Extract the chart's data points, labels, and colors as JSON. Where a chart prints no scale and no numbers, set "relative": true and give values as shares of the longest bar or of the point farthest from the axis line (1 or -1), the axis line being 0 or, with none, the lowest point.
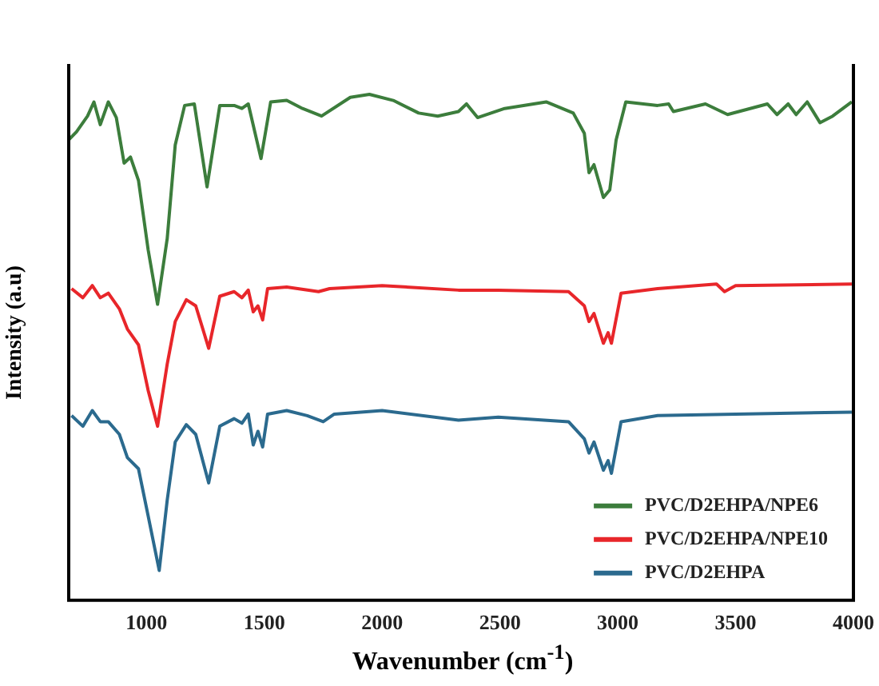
{
  "chart_data": {
    "type": "line",
    "xlabel": "Wavenumber (cm$^{-1}$)",
    "ylabel": "Intensity (a.u)",
    "relative": true,
    "xlim": [
      670,
      4000
    ],
    "xticks": [
      1000,
      1500,
      2000,
      2500,
      3000,
      3500,
      4000
    ],
    "grid": false,
    "legend": "bottom right",
    "marker": "none",
    "line_style": "solid",
    "series": [
      {
        "name": "PVC/D2EHPA/NPE6",
        "color": "#3c7d3c",
        "x": [
          670,
          703,
          750,
          777,
          804,
          838,
          872,
          905,
          932,
          966,
          1007,
          1047,
          1088,
          1122,
          1162,
          1203,
          1257,
          1311,
          1372,
          1405,
          1432,
          1486,
          1527,
          1595,
          1662,
          1743,
          1865,
          1946,
          2047,
          2155,
          2236,
          2324,
          2358,
          2405,
          2520,
          2696,
          2811,
          2858,
          2878,
          2899,
          2939,
          2966,
          2993,
          3034,
          3169,
          3216,
          3236,
          3372,
          3466,
          3635,
          3676,
          3723,
          3757,
          3804,
          3858,
          3912,
          3993
        ],
        "values": [
          0.91,
          0.926,
          0.957,
          0.985,
          0.94,
          0.985,
          0.954,
          0.864,
          0.876,
          0.83,
          0.693,
          0.585,
          0.715,
          0.9,
          0.978,
          0.981,
          0.817,
          0.978,
          0.978,
          0.972,
          0.981,
          0.873,
          0.985,
          0.988,
          0.972,
          0.957,
          0.994,
          1,
          0.988,
          0.963,
          0.957,
          0.966,
          0.981,
          0.954,
          0.972,
          0.985,
          0.963,
          0.923,
          0.845,
          0.861,
          0.796,
          0.811,
          0.91,
          0.985,
          0.978,
          0.981,
          0.966,
          0.981,
          0.96,
          0.981,
          0.96,
          0.981,
          0.96,
          0.985,
          0.944,
          0.957,
          0.985
        ]
      },
      {
        "name": "PVC/D2EHPA/NPE10",
        "color": "#e8262a",
        "x": [
          682,
          730,
          770,
          804,
          838,
          885,
          919,
          966,
          1007,
          1047,
          1088,
          1122,
          1169,
          1209,
          1264,
          1311,
          1372,
          1405,
          1432,
          1453,
          1473,
          1493,
          1514,
          1595,
          1730,
          1777,
          2000,
          2324,
          2493,
          2791,
          2858,
          2878,
          2899,
          2939,
          2959,
          2973,
          3014,
          3169,
          3419,
          3453,
          3500,
          3993
        ],
        "values": [
          0.616,
          0.598,
          0.622,
          0.598,
          0.607,
          0.576,
          0.536,
          0.505,
          0.415,
          0.344,
          0.467,
          0.551,
          0.594,
          0.582,
          0.498,
          0.601,
          0.61,
          0.598,
          0.613,
          0.57,
          0.582,
          0.554,
          0.616,
          0.619,
          0.61,
          0.616,
          0.622,
          0.613,
          0.613,
          0.61,
          0.582,
          0.551,
          0.567,
          0.508,
          0.529,
          0.508,
          0.607,
          0.616,
          0.625,
          0.61,
          0.622,
          0.625
        ]
      },
      {
        "name": "PVC/D2EHPA",
        "color": "#2b6a8e",
        "x": [
          682,
          730,
          770,
          804,
          838,
          885,
          919,
          966,
          1007,
          1054,
          1088,
          1122,
          1169,
          1209,
          1264,
          1311,
          1372,
          1405,
          1432,
          1453,
          1473,
          1493,
          1514,
          1595,
          1682,
          1750,
          1797,
          2000,
          2324,
          2493,
          2791,
          2858,
          2878,
          2899,
          2939,
          2959,
          2973,
          3014,
          3169,
          3993
        ],
        "values": [
          0.365,
          0.344,
          0.375,
          0.353,
          0.353,
          0.328,
          0.282,
          0.26,
          0.167,
          0.059,
          0.198,
          0.313,
          0.347,
          0.328,
          0.232,
          0.344,
          0.359,
          0.35,
          0.368,
          0.307,
          0.334,
          0.303,
          0.368,
          0.375,
          0.365,
          0.353,
          0.368,
          0.375,
          0.356,
          0.362,
          0.353,
          0.319,
          0.291,
          0.313,
          0.257,
          0.276,
          0.251,
          0.353,
          0.365,
          0.372
        ]
      }
    ]
  }
}
